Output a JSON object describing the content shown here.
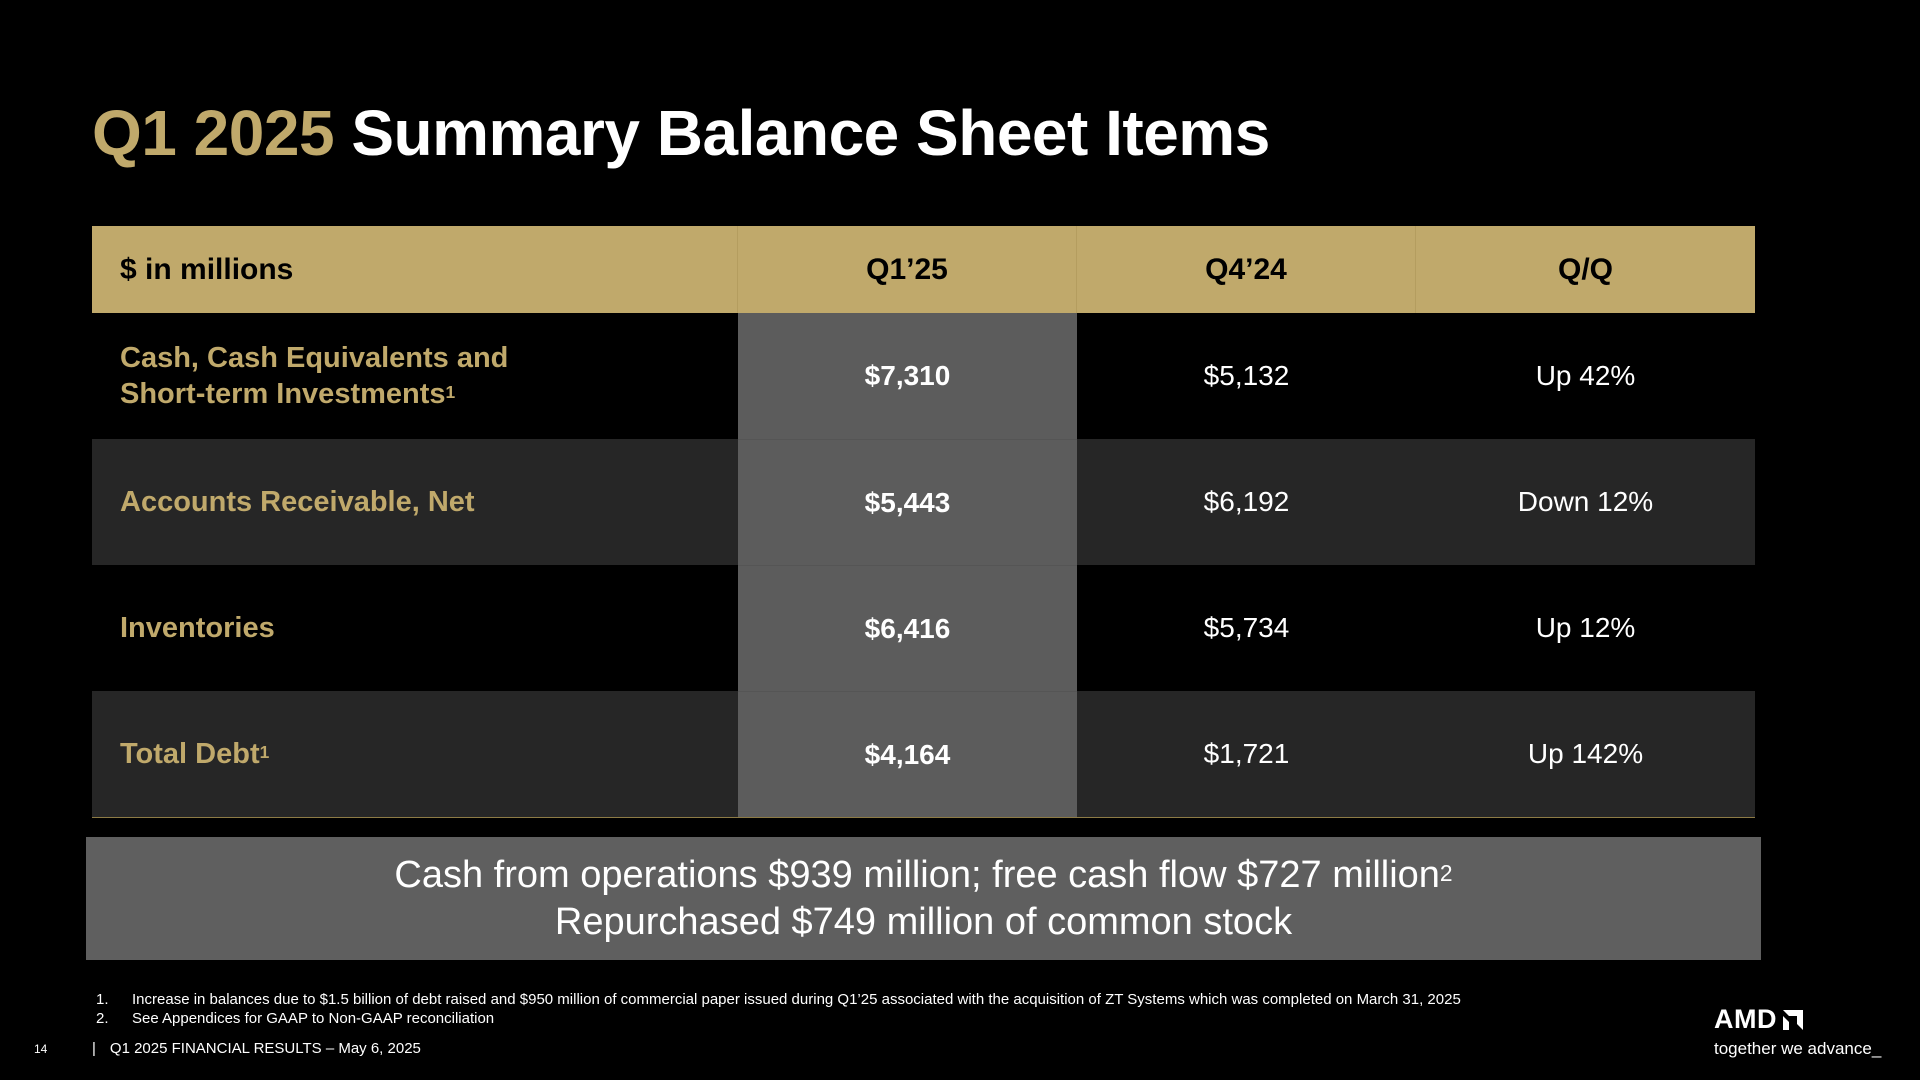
{
  "title": {
    "accent": "Q1 2025",
    "rest": "Summary Balance Sheet Items"
  },
  "table": {
    "headers": [
      "$ in millions",
      "Q1’25",
      "Q4’24",
      "Q/Q"
    ],
    "rows": [
      {
        "label_line1": "Cash, Cash Equivalents and",
        "label_line2": "Short-term Investments",
        "label_sup": "1",
        "q1_25": "$7,310",
        "q4_24": "$5,132",
        "qq": "Up 42%"
      },
      {
        "label": "Accounts Receivable, Net",
        "q1_25": "$5,443",
        "q4_24": "$6,192",
        "qq": "Down 12%"
      },
      {
        "label": "Inventories",
        "q1_25": "$6,416",
        "q4_24": "$5,734",
        "qq": "Up 12%"
      },
      {
        "label": "Total Debt",
        "label_sup": "1",
        "q1_25": "$4,164",
        "q4_24": "$1,721",
        "qq": "Up 142%"
      }
    ]
  },
  "callout": {
    "line1": "Cash from operations $939 million; free cash flow $727 million",
    "line1_sup": "2",
    "line2": "Repurchased $749 million of common stock"
  },
  "footnotes": [
    {
      "num": "1.",
      "text": "Increase in balances due to $1.5 billion of debt raised and $950 million of commercial paper issued during Q1’25 associated with the acquisition of ZT Systems which was completed on March 31, 2025"
    },
    {
      "num": "2.",
      "text": "See Appendices for GAAP to Non-GAAP reconciliation"
    }
  ],
  "footer": {
    "page": "14",
    "separator": "|",
    "text": "Q1 2025 FINANCIAL RESULTS – May 6, 2025"
  },
  "logo": {
    "brand": "AMD",
    "tagline": "together we advance_",
    "icon": "amd-arrow-icon"
  },
  "colors": {
    "gold": "#c0a96b",
    "background": "#000000",
    "highlight_column": "#5c5c5c",
    "callout": "#5f5f5f"
  }
}
